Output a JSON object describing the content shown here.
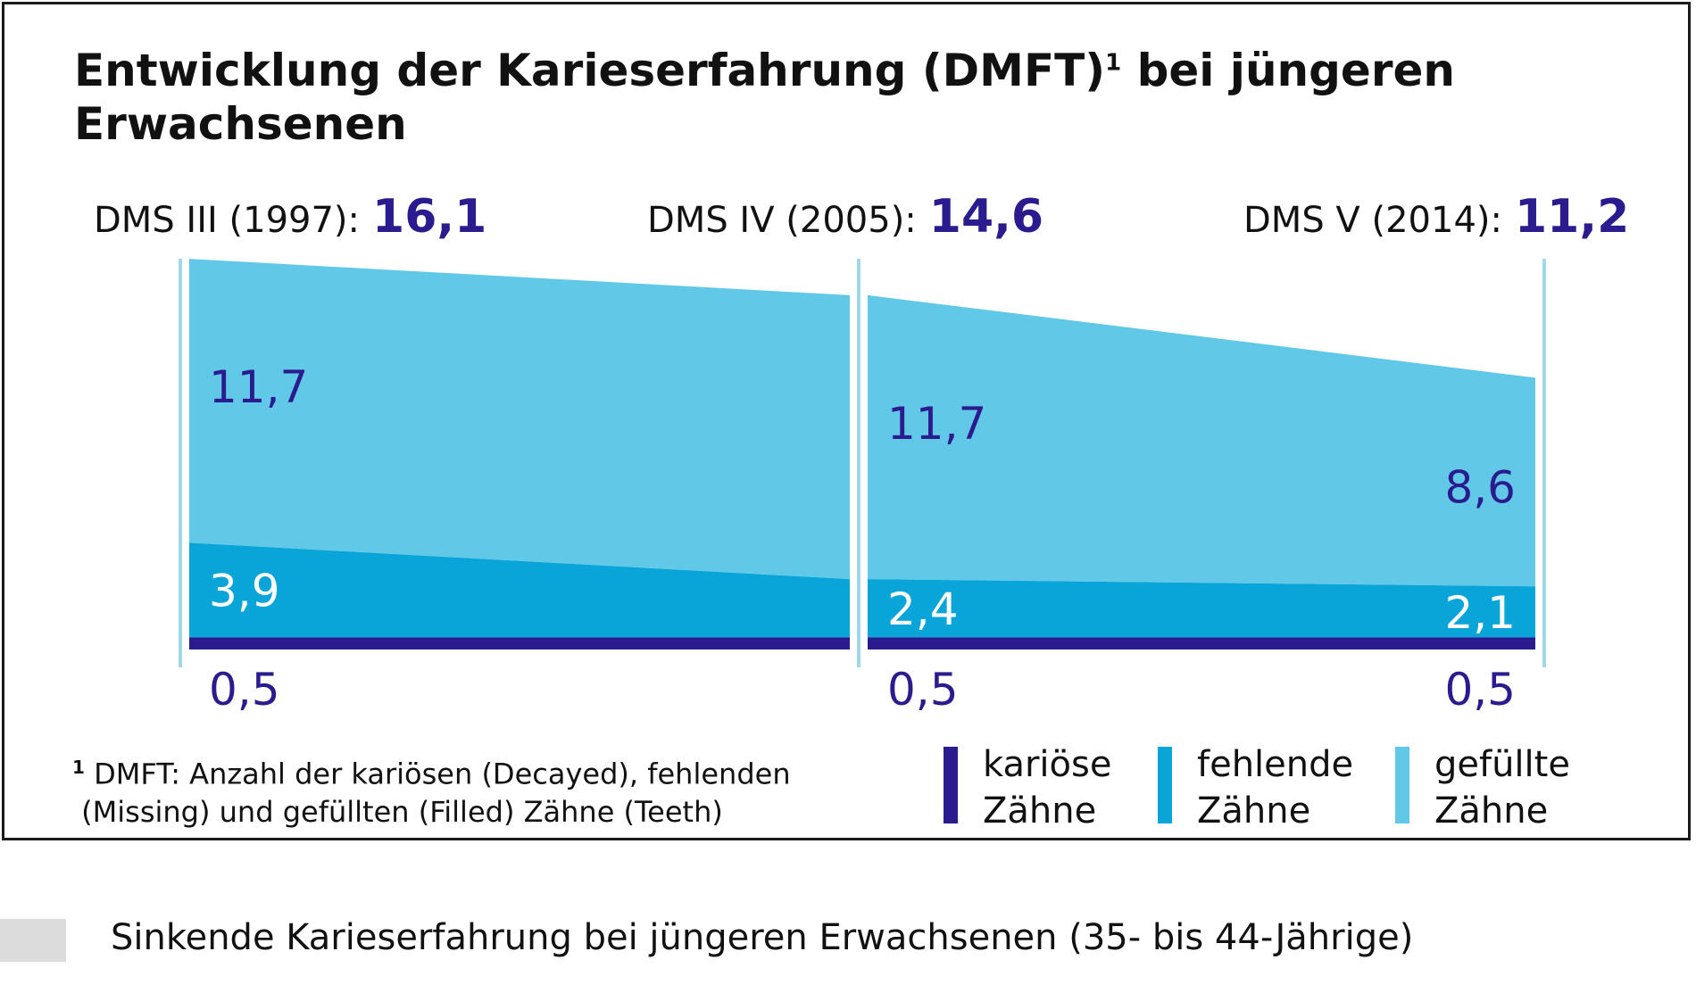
{
  "title_line1": "Entwicklung der Karieserfahrung (DMFT)",
  "title_sup": "1",
  "title_line1b": " bei jüngeren",
  "title_line2": "Erwachsenen",
  "chart_data": {
    "type": "area",
    "title": "Entwicklung der Karieserfahrung (DMFT) bei jüngeren Erwachsenen",
    "x": [
      "DMS III (1997):",
      "DMS IV (2005):",
      "DMS V (2014):"
    ],
    "totals": [
      "16,1",
      "14,6",
      "11,2"
    ],
    "segments": [
      {
        "from": 0,
        "to": 1,
        "decayed": [
          0.5,
          0.5
        ],
        "missing": [
          3.9,
          2.4
        ],
        "filled": [
          11.7,
          11.7
        ],
        "labels": {
          "filled": [
            "11,7",
            ""
          ],
          "missing": [
            "3,9",
            ""
          ],
          "decayed": [
            "0,5",
            ""
          ]
        }
      },
      {
        "from": 1,
        "to": 2,
        "decayed": [
          0.5,
          0.5
        ],
        "missing": [
          2.4,
          2.1
        ],
        "filled": [
          11.7,
          8.6
        ],
        "labels": {
          "filled": [
            "11,7",
            "8,6"
          ],
          "missing": [
            "2,4",
            "2,1"
          ],
          "decayed": [
            "0,5",
            "0,5"
          ]
        }
      }
    ],
    "series": [
      {
        "name": "kariöse Zähne",
        "color": "#2a1c8e"
      },
      {
        "name": "fehlende Zähne",
        "color": "#0aa5d8"
      },
      {
        "name": "gefüllte Zähne",
        "color": "#62c8e8"
      }
    ],
    "ylim": [
      0,
      16.6
    ]
  },
  "legend": [
    {
      "line1": "kariöse",
      "line2": "Zähne",
      "color": "#2a1c8e"
    },
    {
      "line1": "fehlende",
      "line2": "Zähne",
      "color": "#0aa5d8"
    },
    {
      "line1": "gefüllte",
      "line2": "Zähne",
      "color": "#62c8e8"
    }
  ],
  "footnote": {
    "marker": "1",
    "line1": " DMFT: Anzahl der kariösen (Decayed), fehlenden",
    "line2": "(Missing) und gefüllten (Filled) Zähne (Teeth)"
  },
  "caption": "Sinkende Karieserfahrung bei jüngeren Erwachsenen (35- bis 44-Jährige)",
  "colors": {
    "label_dark": "#2a1c8e",
    "label_light": "#ffffff",
    "divider": "#9fd8ea"
  }
}
